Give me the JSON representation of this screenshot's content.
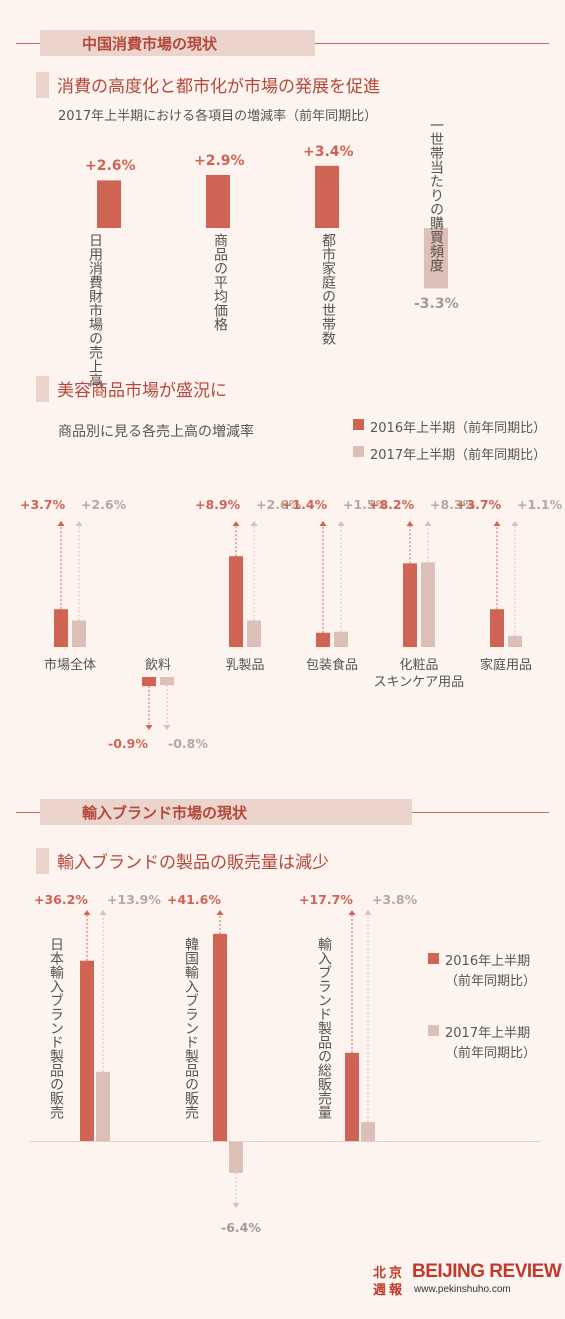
{
  "colors": {
    "accent": "#cf6455",
    "muted": "#dcbfb7",
    "title": "#b5483a"
  },
  "sections": {
    "s1": {
      "title": "中国消費市場の現状"
    },
    "s2": {
      "title": "輸入ブランド市場の現状"
    }
  },
  "legend": {
    "y2016": "2016年上半期（前年同期比）",
    "y2017": "2017年上半期（前年同期比）",
    "c3_2016_a": "2016年上半期",
    "c3_2016_b": "（前年同期比）",
    "c3_2017_a": "2017年上半期",
    "c3_2017_b": "（前年同期比）"
  },
  "brand": {
    "cn1": "北京",
    "cn2": "週報",
    "name": "BEIJING REVIEW",
    "url": "www.pekinshuho.com"
  },
  "chart_data": [
    {
      "type": "bar",
      "title": "消費の高度化と都市化が市場の発展を促進",
      "subtitle": "2017年上半期における各項目の増減率（前年同期比）",
      "categories": [
        "日用消費財市場の売上高",
        "商品の平均価格",
        "都市家庭の世帯数",
        "一世帯当たりの購買頻度"
      ],
      "values": [
        2.6,
        2.9,
        3.4,
        -3.3
      ],
      "labels": [
        "+2.6%",
        "+2.9%",
        "+3.4%",
        "-3.3%"
      ]
    },
    {
      "type": "bar",
      "title": "美容商品市場が盛況に",
      "subtitle": "商品別に見る各売上高の増減率",
      "categories": [
        "市場全体",
        "飲料",
        "乳製品",
        "包装食品",
        "化粧品\nスキンケア用品",
        "家庭用品"
      ],
      "series": [
        {
          "name": "2016年上半期（前年同期比）",
          "values": [
            3.7,
            -0.9,
            8.9,
            1.4,
            8.2,
            3.7
          ],
          "labels": [
            "+3.7%",
            "-0.9%",
            "+8.9%",
            "+1.4%",
            "+8.2%",
            "+3.7%"
          ]
        },
        {
          "name": "2017年上半期（前年同期比）",
          "values": [
            2.6,
            -0.8,
            2.6,
            1.5,
            8.3,
            1.1
          ],
          "labels": [
            "+2.6%",
            "-0.8%",
            "+2.6%",
            "+1.5%",
            "+8.3%",
            "+1.1%"
          ]
        }
      ]
    },
    {
      "type": "bar",
      "title": "輸入ブランドの製品の販売量は減少",
      "categories": [
        "日本輸入ブランド製品の販売",
        "韓国輸入ブランド製品の販売",
        "輸入ブランド製品の総販売量"
      ],
      "series": [
        {
          "name": "2016年上半期（前年同期比）",
          "values": [
            36.2,
            41.6,
            17.7
          ],
          "labels": [
            "+36.2%",
            "+41.6%",
            "+17.7%"
          ]
        },
        {
          "name": "2017年上半期（前年同期比）",
          "values": [
            13.9,
            -6.4,
            3.8
          ],
          "labels": [
            "+13.9%",
            "-6.4%",
            "+3.8%"
          ]
        }
      ]
    }
  ]
}
